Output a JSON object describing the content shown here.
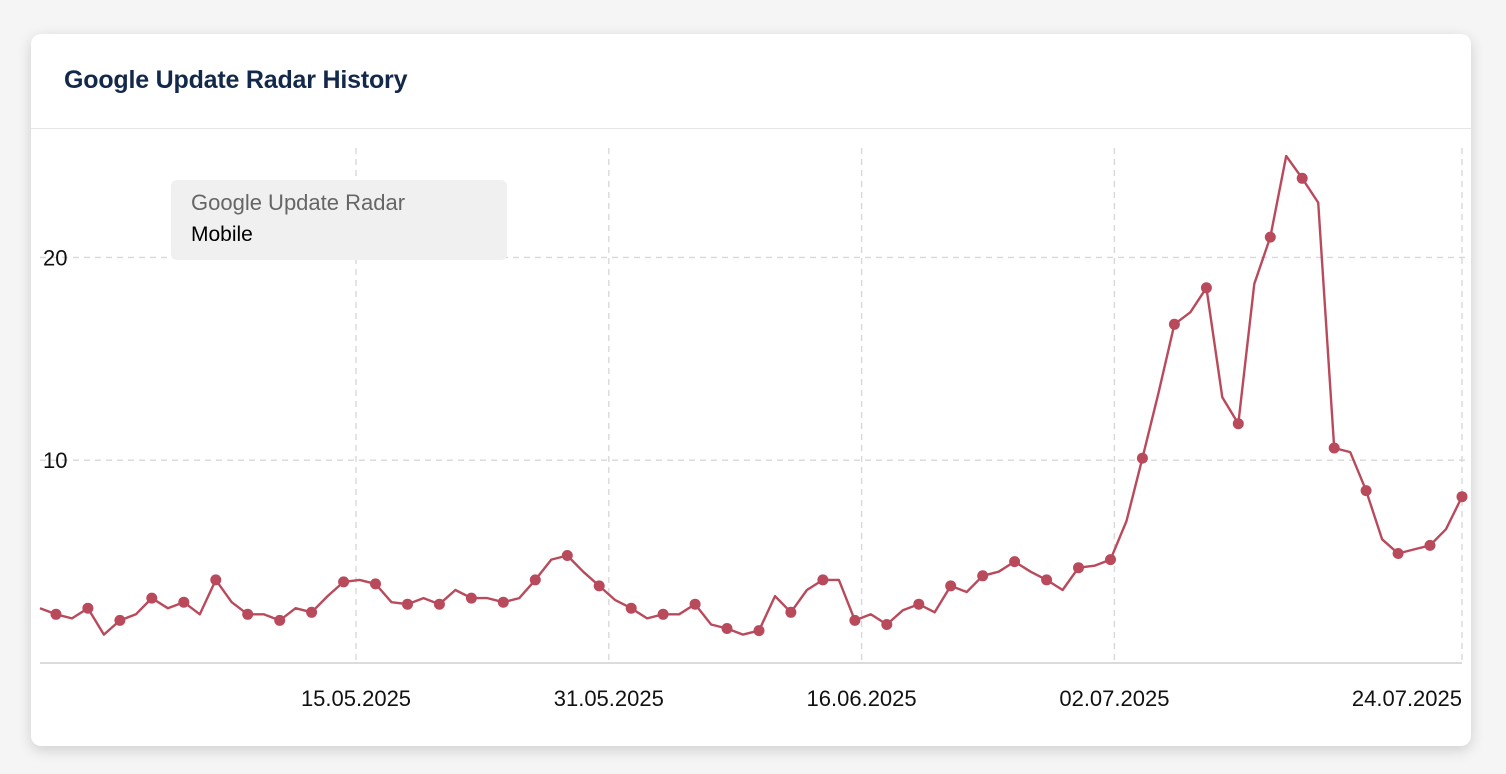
{
  "card": {
    "title": "Google Update Radar History"
  },
  "legend": {
    "title": "Google Update Radar",
    "series": "Mobile"
  },
  "colors": {
    "series": "#b94a5c",
    "title": "#13294b",
    "grid": "#d8d8d8"
  },
  "chart_data": {
    "type": "line",
    "title": "Google Update Radar History",
    "xlabel": "",
    "ylabel": "",
    "x_start": "2025-04-25",
    "x_end": "2025-07-24",
    "ylim": [
      0,
      25
    ],
    "y_ticks": [
      10,
      20
    ],
    "x_ticks": [
      {
        "date": "2025-05-15",
        "label": "15.05.2025"
      },
      {
        "date": "2025-05-31",
        "label": "31.05.2025"
      },
      {
        "date": "2025-06-16",
        "label": "16.06.2025"
      },
      {
        "date": "2025-07-02",
        "label": "02.07.2025"
      },
      {
        "date": "2025-07-24",
        "label": "24.07.2025"
      }
    ],
    "grid": true,
    "legend_position": "top-left",
    "series": [
      {
        "name": "Mobile",
        "values": [
          2.7,
          2.4,
          2.2,
          2.7,
          1.4,
          2.1,
          2.4,
          3.2,
          2.7,
          3.0,
          2.4,
          4.1,
          3.0,
          2.4,
          2.4,
          2.1,
          2.7,
          2.5,
          3.3,
          4.0,
          4.1,
          3.9,
          3.0,
          2.9,
          3.2,
          2.9,
          3.6,
          3.2,
          3.2,
          3.0,
          3.2,
          4.1,
          5.1,
          5.3,
          4.5,
          3.8,
          3.1,
          2.7,
          2.2,
          2.4,
          2.4,
          2.9,
          1.9,
          1.7,
          1.4,
          1.6,
          3.3,
          2.5,
          3.6,
          4.1,
          4.1,
          2.1,
          2.4,
          1.9,
          2.6,
          2.9,
          2.5,
          3.8,
          3.5,
          4.3,
          4.5,
          5.0,
          4.5,
          4.1,
          3.6,
          4.7,
          4.8,
          5.1,
          7.0,
          10.1,
          13.3,
          16.7,
          17.3,
          18.5,
          13.1,
          11.8,
          18.7,
          21.0,
          25.0,
          23.9,
          22.7,
          10.6,
          10.4,
          8.5,
          6.1,
          5.4,
          5.6,
          5.8,
          6.6,
          8.2
        ],
        "marker_indices": [
          1,
          3,
          5,
          7,
          9,
          11,
          13,
          15,
          17,
          19,
          21,
          23,
          25,
          27,
          29,
          31,
          33,
          35,
          37,
          39,
          41,
          43,
          45,
          47,
          49,
          51,
          53,
          55,
          57,
          59,
          61,
          63,
          65,
          67,
          69,
          71,
          73,
          75,
          77,
          79,
          81,
          83,
          85,
          87,
          89
        ]
      }
    ]
  }
}
